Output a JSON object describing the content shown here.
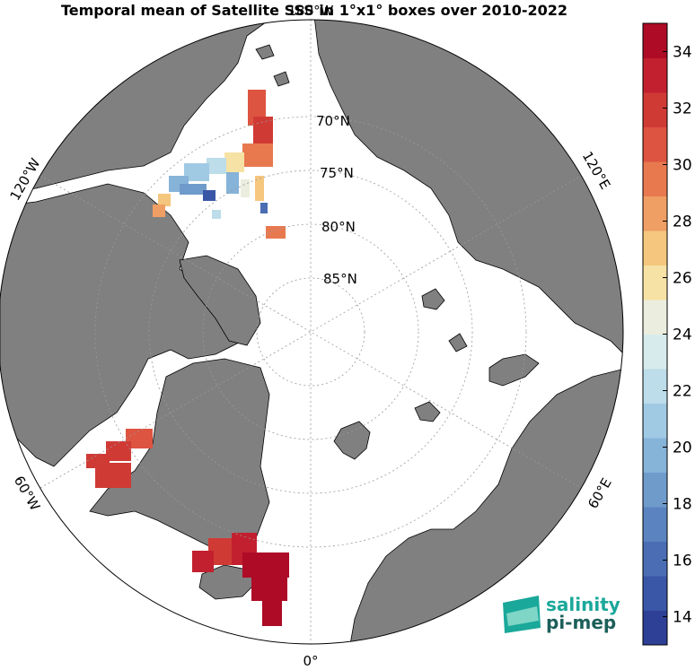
{
  "title": "Temporal mean of Satellite SSS in 1°x1° boxes over 2010-2022",
  "map": {
    "projection": "north-polar-stereographic",
    "land_color": "#808080",
    "ocean_color": "#ffffff",
    "latitude_labels": [
      "70°N",
      "75°N",
      "80°N",
      "85°N"
    ],
    "longitude_labels": [
      "180°W",
      "120°W",
      "60°W",
      "0°",
      "60°E",
      "120°E"
    ]
  },
  "colorbar": {
    "min": 13,
    "max": 35,
    "ticks": [
      "14",
      "16",
      "18",
      "20",
      "22",
      "24",
      "26",
      "28",
      "30",
      "32",
      "34"
    ],
    "colors": [
      "#2e3f96",
      "#3a56a6",
      "#4a6db3",
      "#5b83bf",
      "#6f9bcb",
      "#86b3d8",
      "#a0cae3",
      "#bcdde9",
      "#d7ebec",
      "#ebeede",
      "#f6e2a4",
      "#f5c67e",
      "#ef9e64",
      "#e8794f",
      "#dd5440",
      "#d03a35",
      "#c2202e",
      "#ad0b26"
    ]
  },
  "logo": {
    "line1": "salinity",
    "line2": "pi-mep",
    "color": "#1aa89a"
  }
}
